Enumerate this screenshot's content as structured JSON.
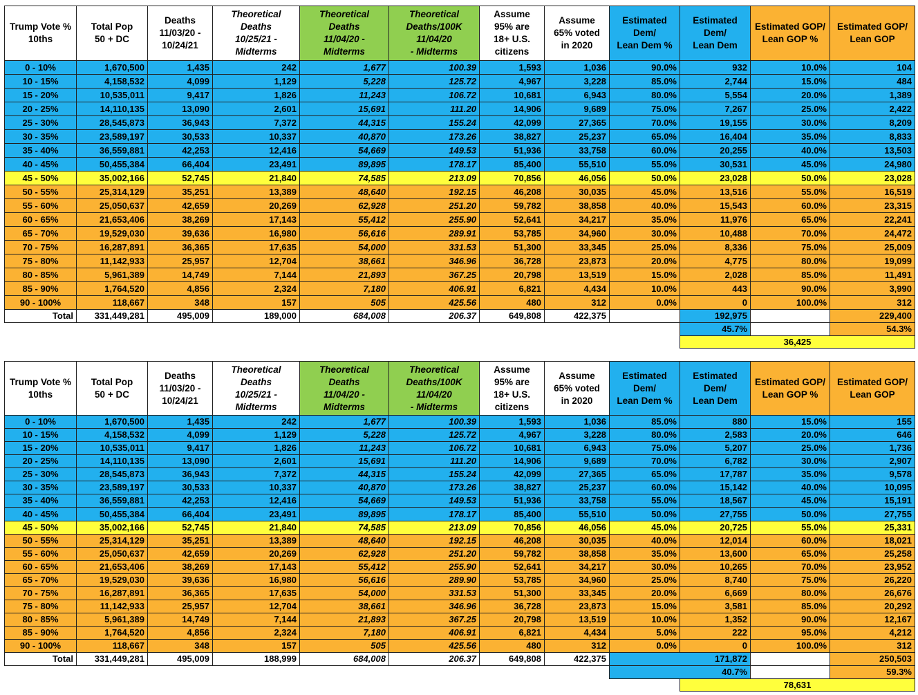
{
  "tables": [
    {
      "header": [
        "Trump Vote %\n10ths",
        "Total Pop\n50 + DC",
        "Deaths\n11/03/20 -\n10/24/21",
        "Theoretical\nDeaths\n10/25/21 -\nMidterms",
        "Theoretical\nDeaths\n11/04/20 -\nMidterms",
        "Theoretical\nDeaths/100K\n11/04/20\n- Midterms",
        "Assume\n95% are\n18+ U.S.\ncitizens",
        "Assume\n65% voted\nin 2020",
        "Estimated\nDem/\nLean Dem %",
        "Estimated\nDem/\nLean Dem",
        "Estimated GOP/\nLean GOP %",
        "Estimated GOP/\nLean GOP"
      ],
      "rows": [
        [
          "0 - 10%",
          "1,670,500",
          "1,435",
          "242",
          "1,677",
          "100.39",
          "1,593",
          "1,036",
          "90.0%",
          "932",
          "10.0%",
          "104"
        ],
        [
          "10 - 15%",
          "4,158,532",
          "4,099",
          "1,129",
          "5,228",
          "125.72",
          "4,967",
          "3,228",
          "85.0%",
          "2,744",
          "15.0%",
          "484"
        ],
        [
          "15 - 20%",
          "10,535,011",
          "9,417",
          "1,826",
          "11,243",
          "106.72",
          "10,681",
          "6,943",
          "80.0%",
          "5,554",
          "20.0%",
          "1,389"
        ],
        [
          "20 - 25%",
          "14,110,135",
          "13,090",
          "2,601",
          "15,691",
          "111.20",
          "14,906",
          "9,689",
          "75.0%",
          "7,267",
          "25.0%",
          "2,422"
        ],
        [
          "25 - 30%",
          "28,545,873",
          "36,943",
          "7,372",
          "44,315",
          "155.24",
          "42,099",
          "27,365",
          "70.0%",
          "19,155",
          "30.0%",
          "8,209"
        ],
        [
          "30 - 35%",
          "23,589,197",
          "30,533",
          "10,337",
          "40,870",
          "173.26",
          "38,827",
          "25,237",
          "65.0%",
          "16,404",
          "35.0%",
          "8,833"
        ],
        [
          "35 - 40%",
          "36,559,881",
          "42,253",
          "12,416",
          "54,669",
          "149.53",
          "51,936",
          "33,758",
          "60.0%",
          "20,255",
          "40.0%",
          "13,503"
        ],
        [
          "40 - 45%",
          "50,455,384",
          "66,404",
          "23,491",
          "89,895",
          "178.17",
          "85,400",
          "55,510",
          "55.0%",
          "30,531",
          "45.0%",
          "24,980"
        ],
        [
          "45 - 50%",
          "35,002,166",
          "52,745",
          "21,840",
          "74,585",
          "213.09",
          "70,856",
          "46,056",
          "50.0%",
          "23,028",
          "50.0%",
          "23,028"
        ],
        [
          "50 - 55%",
          "25,314,129",
          "35,251",
          "13,389",
          "48,640",
          "192.15",
          "46,208",
          "30,035",
          "45.0%",
          "13,516",
          "55.0%",
          "16,519"
        ],
        [
          "55 - 60%",
          "25,050,637",
          "42,659",
          "20,269",
          "62,928",
          "251.20",
          "59,782",
          "38,858",
          "40.0%",
          "15,543",
          "60.0%",
          "23,315"
        ],
        [
          "60 - 65%",
          "21,653,406",
          "38,269",
          "17,143",
          "55,412",
          "255.90",
          "52,641",
          "34,217",
          "35.0%",
          "11,976",
          "65.0%",
          "22,241"
        ],
        [
          "65 - 70%",
          "19,529,030",
          "39,636",
          "16,980",
          "56,616",
          "289.91",
          "53,785",
          "34,960",
          "30.0%",
          "10,488",
          "70.0%",
          "24,472"
        ],
        [
          "70 - 75%",
          "16,287,891",
          "36,365",
          "17,635",
          "54,000",
          "331.53",
          "51,300",
          "33,345",
          "25.0%",
          "8,336",
          "75.0%",
          "25,009"
        ],
        [
          "75 - 80%",
          "11,142,933",
          "25,957",
          "12,704",
          "38,661",
          "346.96",
          "36,728",
          "23,873",
          "20.0%",
          "4,775",
          "80.0%",
          "19,099"
        ],
        [
          "80 - 85%",
          "5,961,389",
          "14,749",
          "7,144",
          "21,893",
          "367.25",
          "20,798",
          "13,519",
          "15.0%",
          "2,028",
          "85.0%",
          "11,491"
        ],
        [
          "85 - 90%",
          "1,764,520",
          "4,856",
          "2,324",
          "7,180",
          "406.91",
          "6,821",
          "4,434",
          "10.0%",
          "443",
          "90.0%",
          "3,990"
        ],
        [
          "90 - 100%",
          "118,667",
          "348",
          "157",
          "505",
          "425.56",
          "480",
          "312",
          "0.0%",
          "0",
          "100.0%",
          "312"
        ]
      ],
      "total": [
        "Total",
        "331,449,281",
        "495,009",
        "189,000",
        "684,008",
        "206.37",
        "649,808",
        "422,375",
        null,
        "192,975",
        null,
        "229,400"
      ],
      "percent": [
        "45.7%",
        "54.3%"
      ],
      "difference": "36,425"
    },
    {
      "header": [
        "Trump Vote %\n10ths",
        "Total Pop\n50 + DC",
        "Deaths\n11/03/20 -\n10/24/21",
        "Theoretical\nDeaths\n10/25/21 -\nMidterms",
        "Theoretical\nDeaths\n11/04/20 -\nMidterms",
        "Theoretical\nDeaths/100K\n11/04/20\n- Midterms",
        "Assume\n95% are\n18+ U.S.\ncitizens",
        "Assume\n65% voted\nin 2020",
        "Estimated\nDem/\nLean Dem %",
        "Estimated\nDem/\nLean Dem",
        "Estimated GOP/\nLean GOP %",
        "Estimated GOP/\nLean GOP"
      ],
      "rows": [
        [
          "0 - 10%",
          "1,670,500",
          "1,435",
          "242",
          "1,677",
          "100.39",
          "1,593",
          "1,036",
          "85.0%",
          "880",
          "15.0%",
          "155"
        ],
        [
          "10 - 15%",
          "4,158,532",
          "4,099",
          "1,129",
          "5,228",
          "125.72",
          "4,967",
          "3,228",
          "80.0%",
          "2,583",
          "20.0%",
          "646"
        ],
        [
          "15 - 20%",
          "10,535,011",
          "9,417",
          "1,826",
          "11,243",
          "106.72",
          "10,681",
          "6,943",
          "75.0%",
          "5,207",
          "25.0%",
          "1,736"
        ],
        [
          "20 - 25%",
          "14,110,135",
          "13,090",
          "2,601",
          "15,691",
          "111.20",
          "14,906",
          "9,689",
          "70.0%",
          "6,782",
          "30.0%",
          "2,907"
        ],
        [
          "25 - 30%",
          "28,545,873",
          "36,943",
          "7,372",
          "44,315",
          "155.24",
          "42,099",
          "27,365",
          "65.0%",
          "17,787",
          "35.0%",
          "9,578"
        ],
        [
          "30 - 35%",
          "23,589,197",
          "30,533",
          "10,337",
          "40,870",
          "173.26",
          "38,827",
          "25,237",
          "60.0%",
          "15,142",
          "40.0%",
          "10,095"
        ],
        [
          "35 - 40%",
          "36,559,881",
          "42,253",
          "12,416",
          "54,669",
          "149.53",
          "51,936",
          "33,758",
          "55.0%",
          "18,567",
          "45.0%",
          "15,191"
        ],
        [
          "40 - 45%",
          "50,455,384",
          "66,404",
          "23,491",
          "89,895",
          "178.17",
          "85,400",
          "55,510",
          "50.0%",
          "27,755",
          "50.0%",
          "27,755"
        ],
        [
          "45 - 50%",
          "35,002,166",
          "52,745",
          "21,840",
          "74,585",
          "213.09",
          "70,856",
          "46,056",
          "45.0%",
          "20,725",
          "55.0%",
          "25,331"
        ],
        [
          "50 - 55%",
          "25,314,129",
          "35,251",
          "13,389",
          "48,640",
          "192.15",
          "46,208",
          "30,035",
          "40.0%",
          "12,014",
          "60.0%",
          "18,021"
        ],
        [
          "55 - 60%",
          "25,050,637",
          "42,659",
          "20,269",
          "62,928",
          "251.20",
          "59,782",
          "38,858",
          "35.0%",
          "13,600",
          "65.0%",
          "25,258"
        ],
        [
          "60 - 65%",
          "21,653,406",
          "38,269",
          "17,143",
          "55,412",
          "255.90",
          "52,641",
          "34,217",
          "30.0%",
          "10,265",
          "70.0%",
          "23,952"
        ],
        [
          "65 - 70%",
          "19,529,030",
          "39,636",
          "16,980",
          "56,616",
          "289.90",
          "53,785",
          "34,960",
          "25.0%",
          "8,740",
          "75.0%",
          "26,220"
        ],
        [
          "70 - 75%",
          "16,287,891",
          "36,365",
          "17,635",
          "54,000",
          "331.53",
          "51,300",
          "33,345",
          "20.0%",
          "6,669",
          "80.0%",
          "26,676"
        ],
        [
          "75 - 80%",
          "11,142,933",
          "25,957",
          "12,704",
          "38,661",
          "346.96",
          "36,728",
          "23,873",
          "15.0%",
          "3,581",
          "85.0%",
          "20,292"
        ],
        [
          "80 - 85%",
          "5,961,389",
          "14,749",
          "7,144",
          "21,893",
          "367.25",
          "20,798",
          "13,519",
          "10.0%",
          "1,352",
          "90.0%",
          "12,167"
        ],
        [
          "85 - 90%",
          "1,764,520",
          "4,856",
          "2,324",
          "7,180",
          "406.91",
          "6,821",
          "4,434",
          "5.0%",
          "222",
          "95.0%",
          "4,212"
        ],
        [
          "90 - 100%",
          "118,667",
          "348",
          "157",
          "505",
          "425.56",
          "480",
          "312",
          "0.0%",
          "0",
          "100.0%",
          "312"
        ]
      ],
      "total": [
        "Total",
        "331,449,281",
        "495,009",
        "188,999",
        "684,008",
        "206.37",
        "649,808",
        "422,375",
        null,
        "171,872",
        null,
        "250,503"
      ],
      "percent": [
        "40.7%",
        "59.3%"
      ],
      "difference": "78,631"
    }
  ]
}
